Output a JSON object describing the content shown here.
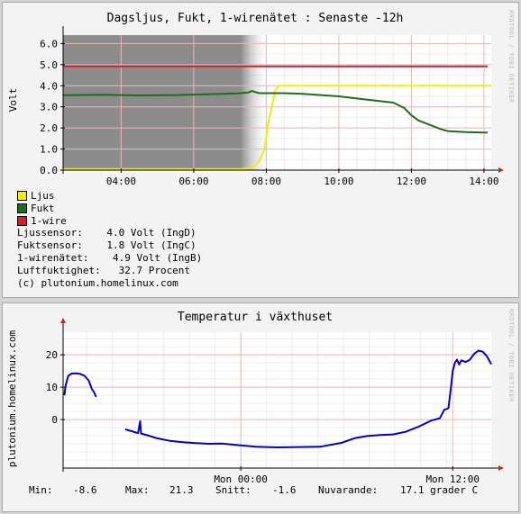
{
  "chart1": {
    "title": "Dagsljus, Fukt, 1-wirenätet : Senaste -12h",
    "watermark": "RRDTOOL / TOBI OETIKER",
    "ylabel": "Volt",
    "legend": [
      {
        "name": "Ljus",
        "color": "#f0f000"
      },
      {
        "name": "Fukt",
        "color": "#1f6b1f"
      },
      {
        "name": "1-wire",
        "color": "#cc2233"
      }
    ],
    "stats": [
      "Ljussensor:    4.0 Volt (IngD)",
      "Fuktsensor:    1.8 Volt (IngC)",
      "1-wirenätet:    4.9 Volt (IngB)",
      "Luftfuktighet:   32.7 Procent",
      "(c) plutonium.homelinux.com"
    ]
  },
  "chart2": {
    "title": "Temperatur i växthuset",
    "watermark": "RRDTOOL / TOBI OETIKER",
    "ylabel": "plutonium.homelinux.com",
    "footer": {
      "min_label": "Min:",
      "min_value": "-8.6",
      "max_label": "Max:",
      "max_value": "21.3",
      "avg_label": "Snitt:",
      "avg_value": "-1.6",
      "cur_label": "Nuvarande:",
      "cur_value": "17.1 grader C"
    }
  },
  "chart_data": [
    {
      "type": "line",
      "title": "Dagsljus, Fukt, 1-wirenätet : Senaste -12h",
      "ylabel": "Volt",
      "xlim": [
        2.4,
        14.2
      ],
      "ylim": [
        0,
        6.4
      ],
      "yticks": [
        0.0,
        1.0,
        2.0,
        3.0,
        4.0,
        5.0,
        6.0
      ],
      "ytick_labels": [
        "0.0",
        "1.0",
        "2.0",
        "3.0",
        "4.0",
        "5.0",
        "6.0"
      ],
      "xticks": [
        4,
        6,
        8,
        10,
        12,
        14
      ],
      "xtick_labels": [
        "04:00",
        "06:00",
        "08:00",
        "10:00",
        "12:00",
        "14:00"
      ],
      "grid": true,
      "shaded_region": {
        "from": 2.4,
        "to": 8.1
      },
      "series": [
        {
          "name": "Ljus",
          "color": "#f0f000",
          "x": [
            2.4,
            7.3,
            7.6,
            7.8,
            7.95,
            8.05,
            8.15,
            8.25,
            8.35,
            14.2
          ],
          "y": [
            0.05,
            0.05,
            0.1,
            0.4,
            1.0,
            2.2,
            3.0,
            3.8,
            4.0,
            4.0
          ]
        },
        {
          "name": "Fukt",
          "color": "#1f6b1f",
          "x": [
            2.4,
            3.5,
            4.5,
            5.5,
            6.5,
            7.2,
            7.5,
            7.6,
            7.7,
            7.8,
            8.5,
            9.0,
            10.0,
            11.0,
            11.5,
            11.8,
            12.0,
            12.2,
            12.5,
            12.8,
            13.0,
            13.5,
            14.0,
            14.1
          ],
          "y": [
            3.55,
            3.57,
            3.54,
            3.56,
            3.6,
            3.64,
            3.68,
            3.75,
            3.7,
            3.65,
            3.65,
            3.62,
            3.5,
            3.3,
            3.2,
            2.95,
            2.6,
            2.35,
            2.15,
            1.95,
            1.85,
            1.8,
            1.78,
            1.78
          ]
        },
        {
          "name": "1-wire",
          "color": "#cc2233",
          "x": [
            2.4,
            14.1
          ],
          "y": [
            4.92,
            4.92
          ]
        }
      ]
    },
    {
      "type": "line",
      "title": "Temperatur i växthuset",
      "ylabel": "plutonium.homelinux.com",
      "xlim": [
        0,
        100
      ],
      "ylim": [
        -15,
        27
      ],
      "yticks": [
        0,
        10,
        20
      ],
      "ytick_labels": [
        "0",
        "10",
        "20"
      ],
      "xticks": [
        41.5,
        91
      ],
      "xtick_labels": [
        "Mon 00:00",
        "Mon 12:00"
      ],
      "grid": true,
      "series": [
        {
          "name": "",
          "color": "#0000cc",
          "segments": [
            {
              "x": [
                0.3,
                0.6,
                1.2,
                2,
                3,
                4,
                5,
                6,
                6.7,
                7.2,
                7.7
              ],
              "y": [
                7.5,
                10.5,
                13.5,
                14.2,
                14.3,
                14.1,
                13.5,
                12,
                9.5,
                8.5,
                7
              ]
            },
            {
              "x": [
                14.5,
                16,
                17.5,
                18,
                18.2,
                18.4,
                20,
                22,
                25,
                28,
                31,
                34,
                37,
                40,
                45,
                50,
                55,
                60,
                65,
                68,
                71,
                74,
                77,
                80,
                83,
                86,
                88,
                89,
                90,
                90.5,
                91,
                91.5,
                92,
                92.5,
                93,
                94,
                95,
                96,
                97,
                98,
                99,
                100
              ],
              "y": [
                -3,
                -3.6,
                -4.2,
                -0.5,
                -4.3,
                -4.4,
                -5,
                -5.8,
                -6.6,
                -7,
                -7.3,
                -7.5,
                -7.4,
                -7.8,
                -8.4,
                -8.6,
                -8.5,
                -8.4,
                -7.2,
                -5.8,
                -5.1,
                -4.8,
                -4.6,
                -3.8,
                -2.2,
                -0.3,
                0.4,
                3,
                3.5,
                9,
                15,
                17.5,
                18.5,
                17,
                18.3,
                17.8,
                18.5,
                20.3,
                21.3,
                21,
                19.5,
                17.1
              ]
            }
          ]
        }
      ]
    }
  ]
}
